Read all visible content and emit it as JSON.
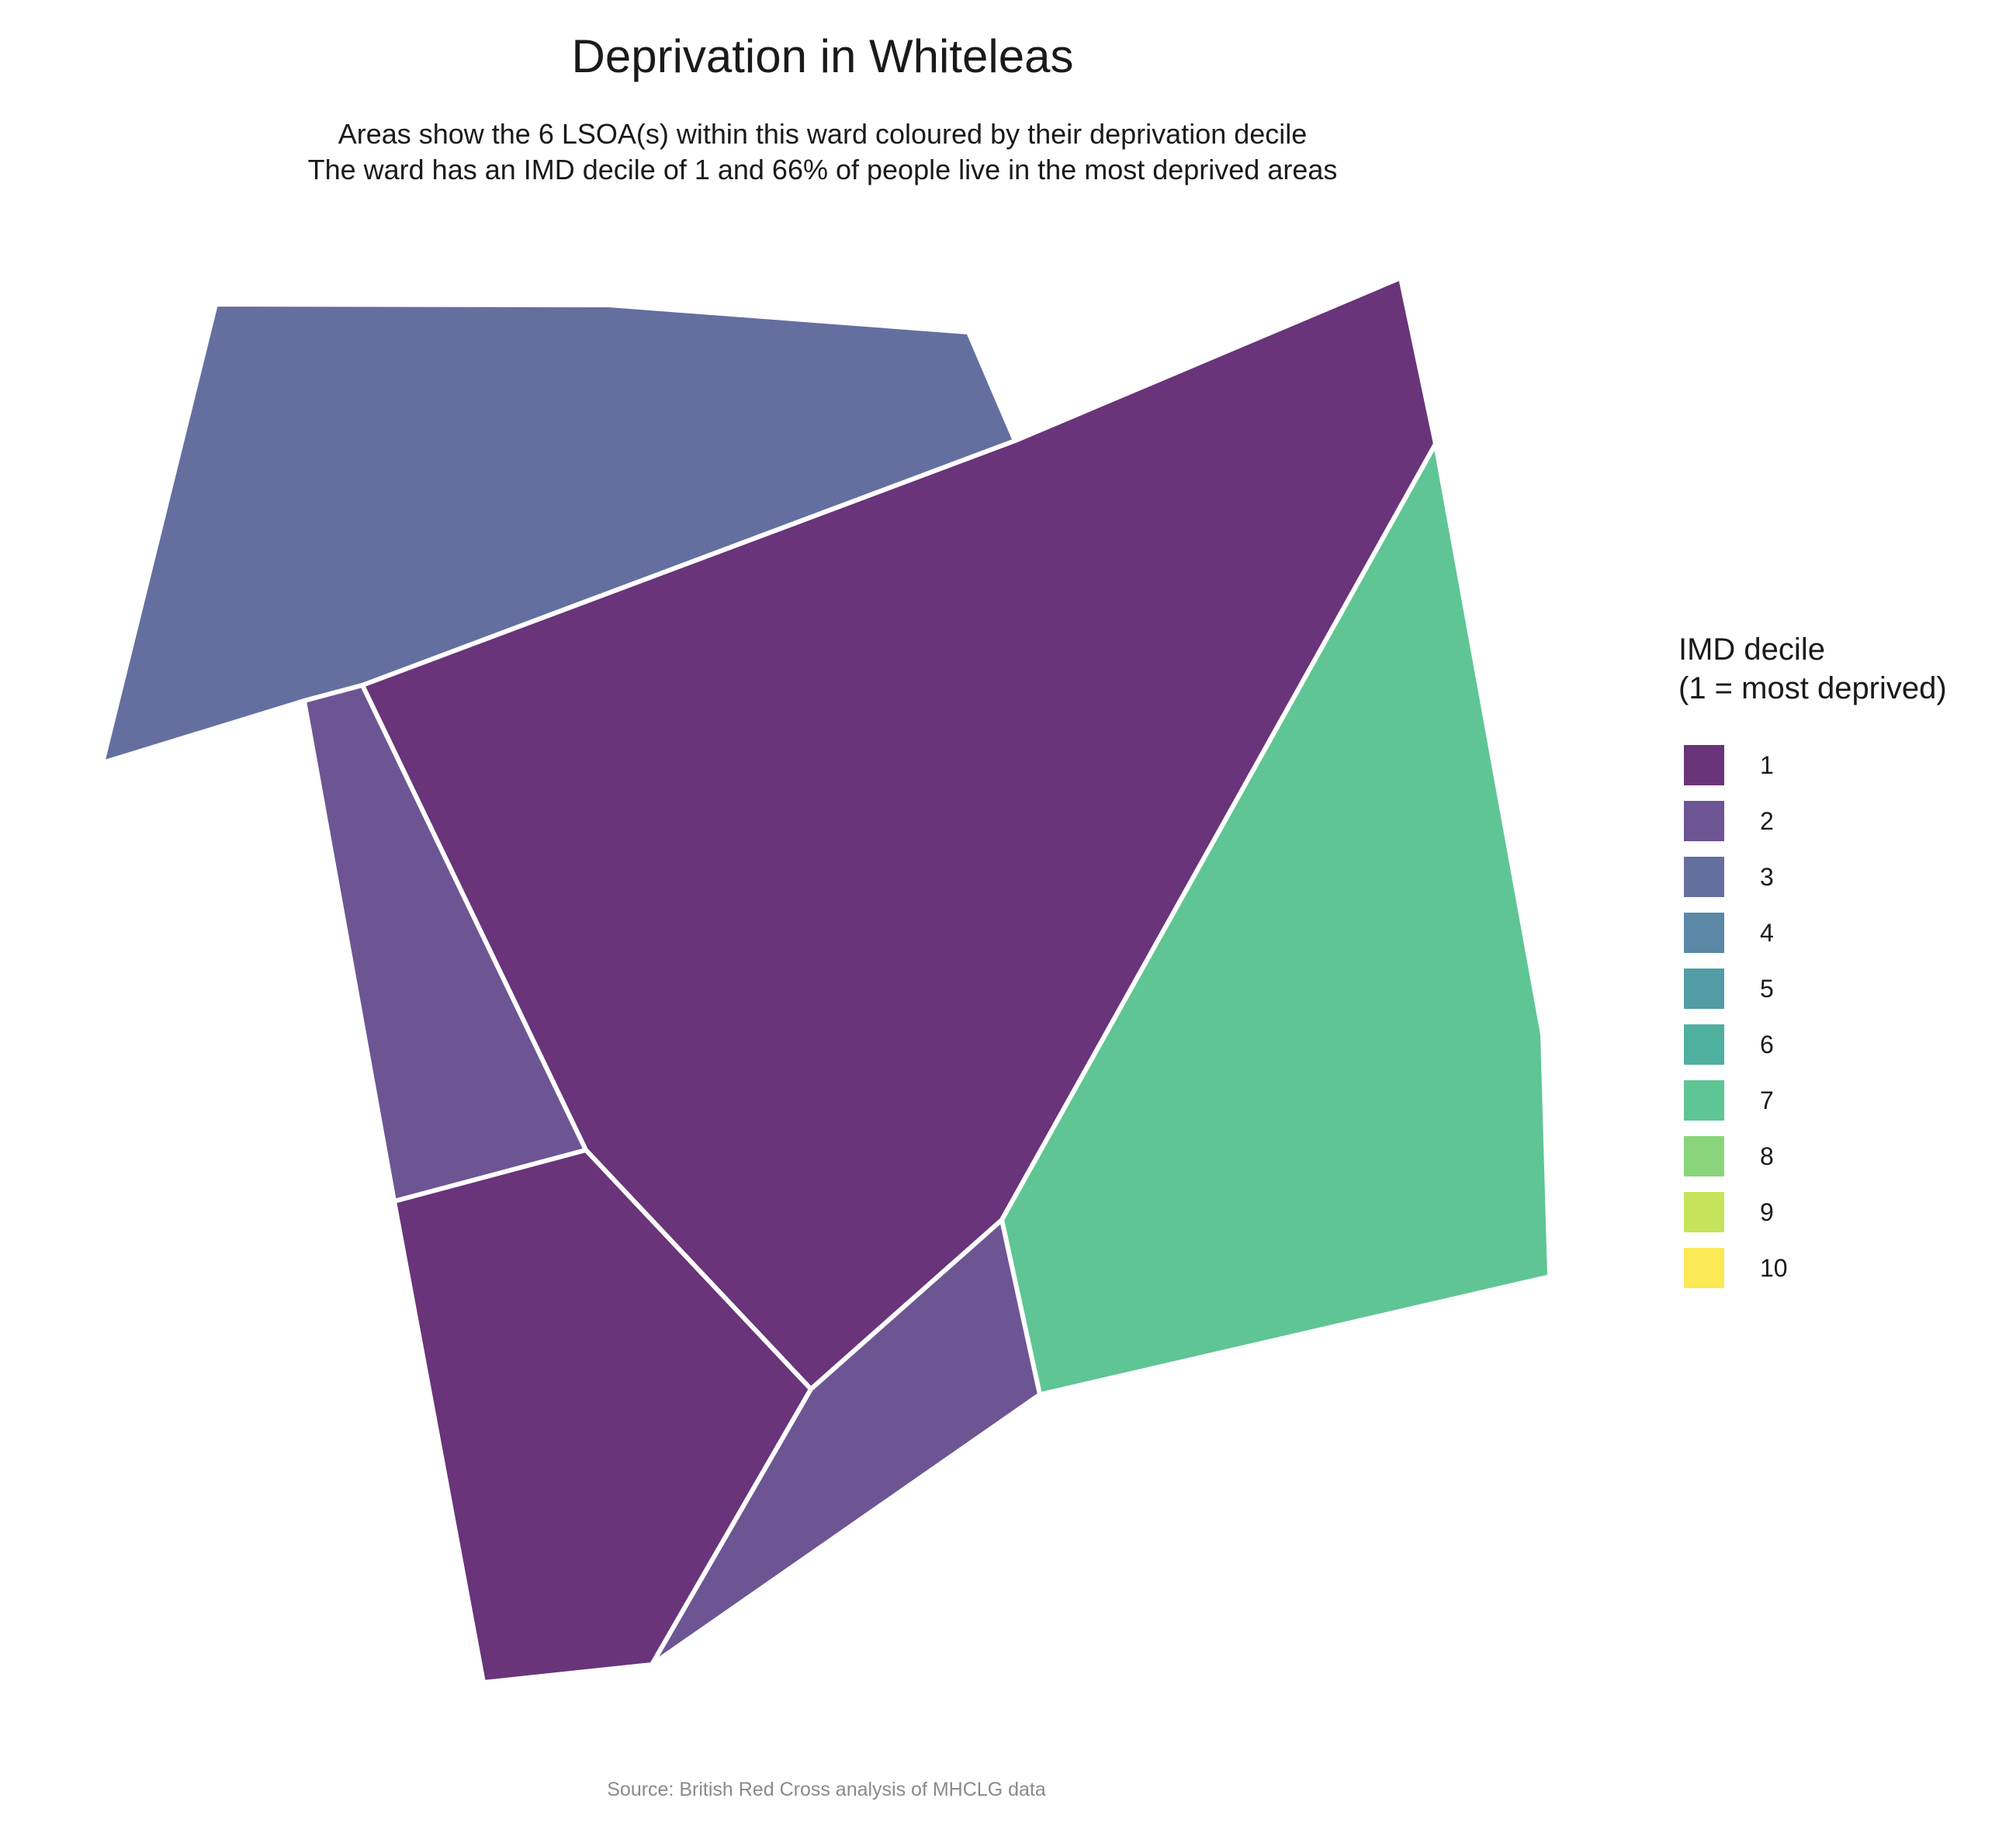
{
  "title": "Deprivation in Whiteleas",
  "subtitle": {
    "line1": "Areas show the 6 LSOA(s) within this ward coloured by their deprivation decile",
    "line2": "The ward has an IMD decile of 1 and 66% of people live in the most deprived areas"
  },
  "legend": {
    "title_line1": "IMD decile",
    "title_line2": "(1 = most deprived)",
    "items": [
      {
        "label": "1",
        "color": "#69347A"
      },
      {
        "label": "2",
        "color": "#6D5593"
      },
      {
        "label": "3",
        "color": "#646FA0"
      },
      {
        "label": "4",
        "color": "#5A88A6"
      },
      {
        "label": "5",
        "color": "#529CA6"
      },
      {
        "label": "6",
        "color": "#4FB0A0"
      },
      {
        "label": "7",
        "color": "#5FC594"
      },
      {
        "label": "8",
        "color": "#8AD57C"
      },
      {
        "label": "9",
        "color": "#C6E45B"
      },
      {
        "label": "10",
        "color": "#FBE955"
      }
    ]
  },
  "areas": [
    {
      "name": "lsoa-north-west",
      "decile": 3
    },
    {
      "name": "lsoa-central",
      "decile": 1
    },
    {
      "name": "lsoa-east",
      "decile": 7
    },
    {
      "name": "lsoa-west-strip",
      "decile": 2
    },
    {
      "name": "lsoa-south-west",
      "decile": 1
    },
    {
      "name": "lsoa-south",
      "decile": 2
    }
  ],
  "source": "Source: British Red Cross analysis of MHCLG data"
}
